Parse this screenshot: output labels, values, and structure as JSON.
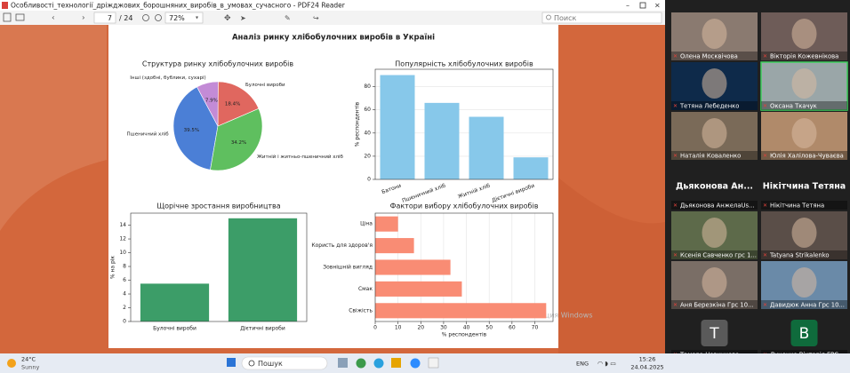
{
  "window": {
    "title": "Особливості_технології_дріжджових_борошняних_виробів_в_умовах_сучасного - PDF24 Reader",
    "page": "7",
    "pages": "/ 24",
    "zoom": "72%",
    "search": "Поиск"
  },
  "document": {
    "title": "Аналіз ринку хлібобулочних виробів в Україні",
    "watermark": "Активация Windows",
    "charts": [
      {
        "type": "pie",
        "title": "Структура ринку хлібобулочних виробів",
        "categories": [
          "Пшеничний хліб",
          "Житній і житньо-пшеничний хліб",
          "Булочні вироби",
          "Інші (здобні, бублики, сухарі)"
        ],
        "values": [
          39.5,
          34.2,
          18.4,
          7.9
        ],
        "value_labels": [
          "39.5%",
          "34.2%",
          "18.4%",
          "7.9%"
        ],
        "colors": [
          "#4b7fd6",
          "#5fbf5f",
          "#e0675f",
          "#c38bd6"
        ]
      },
      {
        "type": "bar",
        "title": "Популярність хлібобулочних виробів",
        "ylabel": "% респондентів",
        "categories": [
          "Батони",
          "Пшеничний хліб",
          "Житній хліб",
          "Дієтичні вироби"
        ],
        "values": [
          90,
          66,
          54,
          19
        ],
        "color": "#87c8ea",
        "ylim": [
          0,
          95
        ],
        "yticks": [
          0,
          20,
          40,
          60,
          80
        ],
        "grid": true,
        "rotate_labels": true
      },
      {
        "type": "bar",
        "title": "Щорічне зростання виробництва",
        "ylabel": "% на рік",
        "categories": [
          "Булочні вироби",
          "Дієтичні вироби"
        ],
        "values": [
          5.5,
          15
        ],
        "color": "#3c9d68",
        "ylim": [
          0,
          15.75
        ],
        "yticks": [
          0,
          2,
          4,
          6,
          8,
          10,
          12,
          14
        ],
        "grid": false,
        "rotate_labels": false
      },
      {
        "type": "barh",
        "title": "Фактори вибору хлібобулочних виробів",
        "xlabel": "% респондентів",
        "categories": [
          "Ціна",
          "Користь для здоров'я",
          "Зовнішній вигляд",
          "Смак",
          "Свіжість"
        ],
        "values": [
          10,
          17,
          33,
          38,
          75
        ],
        "color": "#f98c74",
        "xlim": [
          0,
          78
        ],
        "xticks": [
          0,
          10,
          20,
          30,
          40,
          50,
          60,
          70
        ],
        "grid": true
      }
    ]
  },
  "participants": [
    {
      "name": "Олена Москвічова"
    },
    {
      "name": "Вікторія Кожевнікова"
    },
    {
      "name": "Тетяна Лебеденко"
    },
    {
      "name": "Оксана Ткачук"
    },
    {
      "name": "Наталія Коваленко"
    },
    {
      "name": "Юлія Халілова-Чуваєва"
    },
    {
      "name": "Дьяконова АнжелаUs...",
      "display": "Дьяконова Ан..."
    },
    {
      "name": "Нікітчина Тетяна",
      "display": "Нікітчина Тетяна"
    },
    {
      "name": "Ксенія Савченко грс 1..."
    },
    {
      "name": "Tatyana Strikalenko"
    },
    {
      "name": "Аня Березкіна Грс 10..."
    },
    {
      "name": "Давидюк Анна Грс 10..."
    },
    {
      "name": "Тамара Новичкова",
      "avatar": "Т"
    },
    {
      "name": "Луценко Вікторія ГРС",
      "avatar": "В"
    }
  ],
  "taskbar": {
    "temperature": "24°C",
    "weather": "Sunny",
    "search": "Пошук",
    "language": "ENG",
    "time": "15:26",
    "date": "24.04.2025"
  }
}
